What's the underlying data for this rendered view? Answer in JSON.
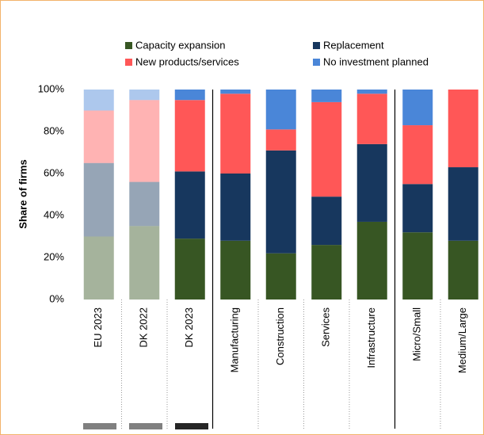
{
  "chart_data": {
    "type": "stacked_bar",
    "ylabel": "Share of firms",
    "categories": [
      "EU 2023",
      "DK 2022",
      "DK 2023",
      "Manufacturing",
      "Construction",
      "Services",
      "Infrastructure",
      "Micro/Small",
      "Medium/Large"
    ],
    "series": [
      {
        "name": "Capacity expansion",
        "color": "#375623",
        "values": [
          30,
          35,
          29,
          28,
          22,
          26,
          37,
          32,
          28
        ]
      },
      {
        "name": "Replacement",
        "color": "#17375e",
        "values": [
          35,
          21,
          32,
          32,
          49,
          23,
          37,
          23,
          35
        ]
      },
      {
        "name": "New products/services",
        "color": "#ff5757",
        "values": [
          25,
          39,
          34,
          38,
          10,
          45,
          24,
          28,
          37
        ]
      },
      {
        "name": "No investment planned",
        "color": "#4a86d8",
        "values": [
          10,
          5,
          5,
          2,
          19,
          6,
          2,
          17,
          0
        ]
      }
    ],
    "ylim": [
      0,
      100
    ],
    "yticks": [
      {
        "value": 0,
        "label": "0%"
      },
      {
        "value": 20,
        "label": "20%"
      },
      {
        "value": 40,
        "label": "40%"
      },
      {
        "value": 60,
        "label": "60%"
      },
      {
        "value": 80,
        "label": "80%"
      },
      {
        "value": 100,
        "label": "100%"
      }
    ]
  }
}
